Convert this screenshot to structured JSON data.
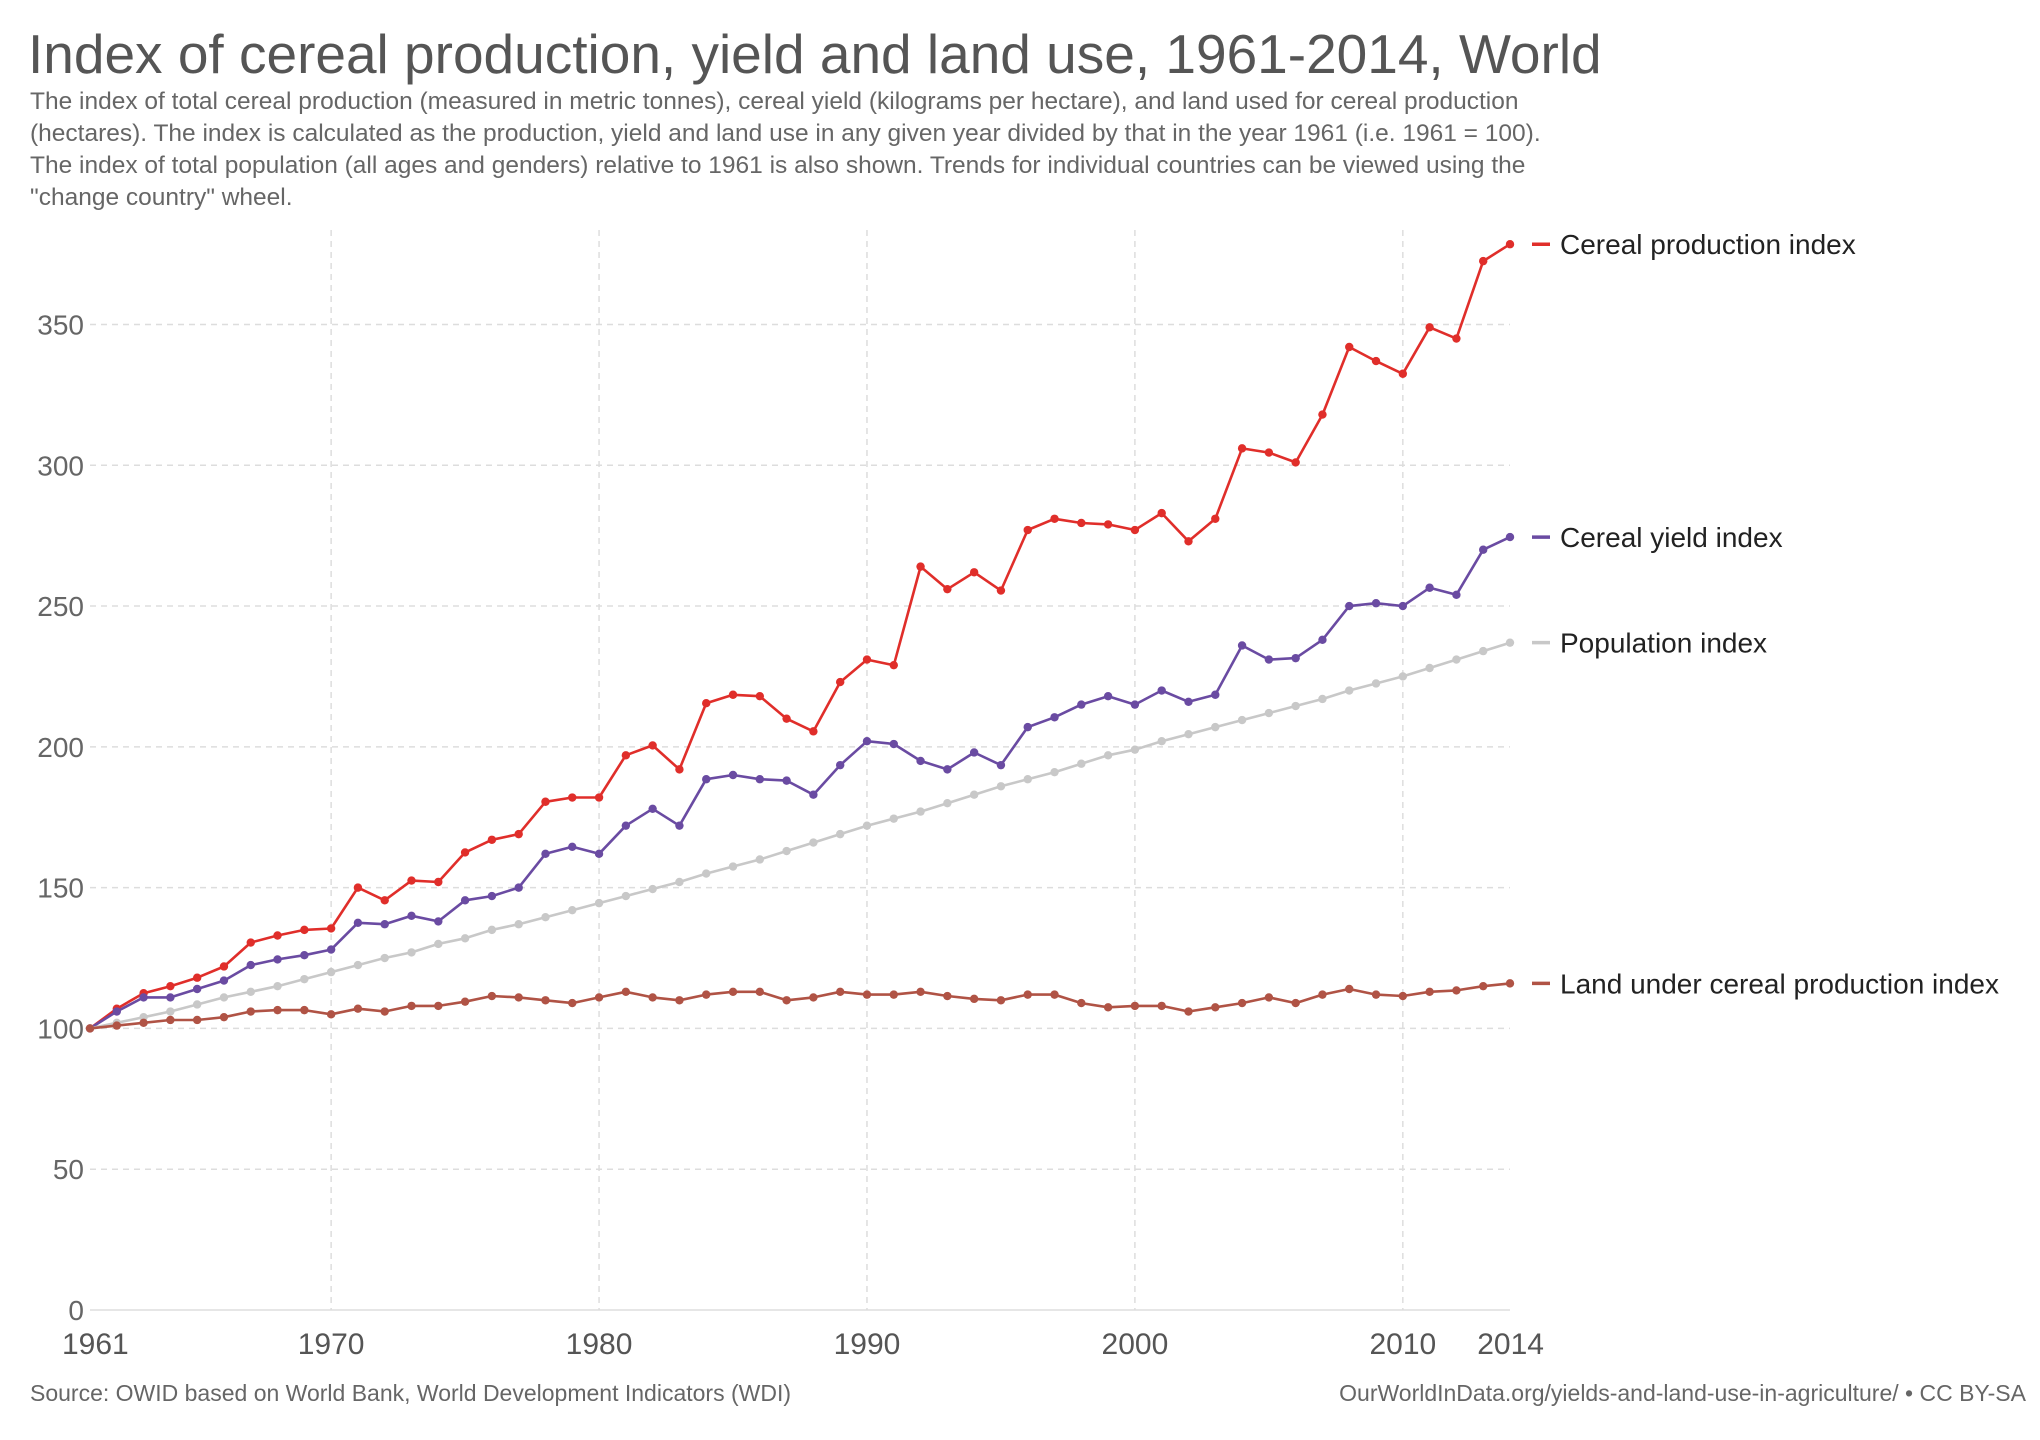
{
  "title": "Index of cereal production, yield and land use, 1961-2014, World",
  "subtitle_lines": [
    "The index of total cereal production (measured in metric tonnes), cereal yield (kilograms per hectare), and land used for cereal production",
    "(hectares). The index is calculated as the production, yield and land use in any given year divided by that in the year 1961 (i.e. 1961 = 100).",
    "The index of total population (all ages and genders) relative to 1961 is also shown. Trends for individual countries can be viewed using the",
    "\"change country\" wheel."
  ],
  "source": "Source: OWID based on World Bank, World Development Indicators (WDI)",
  "url": "OurWorldInData.org/yields-and-land-use-in-agriculture/ • CC BY-SA",
  "chart_data": {
    "type": "line",
    "title": "Index of cereal production, yield and land use, 1961-2014, World",
    "xlabel": "",
    "ylabel": "",
    "xlim": [
      1961,
      2014
    ],
    "ylim": [
      0,
      380
    ],
    "x_ticks": [
      1961,
      1970,
      1980,
      1990,
      2000,
      2010,
      2014
    ],
    "y_ticks": [
      0,
      50,
      100,
      150,
      200,
      250,
      300,
      350
    ],
    "grid": true,
    "legend": "right, labels at line ends",
    "x": [
      1961,
      1962,
      1963,
      1964,
      1965,
      1966,
      1967,
      1968,
      1969,
      1970,
      1971,
      1972,
      1973,
      1974,
      1975,
      1976,
      1977,
      1978,
      1979,
      1980,
      1981,
      1982,
      1983,
      1984,
      1985,
      1986,
      1987,
      1988,
      1989,
      1990,
      1991,
      1992,
      1993,
      1994,
      1995,
      1996,
      1997,
      1998,
      1999,
      2000,
      2001,
      2002,
      2003,
      2004,
      2005,
      2006,
      2007,
      2008,
      2009,
      2010,
      2011,
      2012,
      2013,
      2014
    ],
    "series": [
      {
        "name": "Cereal production index",
        "color": "#e02e2a",
        "values": [
          100,
          107,
          112.5,
          115,
          118,
          122,
          130.5,
          133,
          135,
          135.5,
          150,
          145.5,
          152.5,
          152,
          162.5,
          167,
          169,
          180.5,
          182,
          182,
          197,
          200.5,
          192,
          215.5,
          218.5,
          218,
          210,
          205.5,
          223,
          231,
          229,
          264,
          256,
          262,
          255.5,
          277,
          281,
          279.5,
          279,
          277,
          283,
          273,
          281,
          306,
          304.5,
          301,
          318,
          342,
          337,
          332.5,
          349,
          345,
          372.5,
          378.5
        ]
      },
      {
        "name": "Cereal yield index",
        "color": "#6a4ba2",
        "values": [
          100,
          106,
          111,
          111,
          114,
          117,
          122.5,
          124.5,
          126,
          128,
          137.5,
          137,
          140,
          138,
          145.5,
          147,
          150,
          162,
          164.5,
          162,
          172,
          178,
          172,
          188.5,
          190,
          188.5,
          188,
          183,
          193.5,
          202,
          201,
          195,
          192,
          198,
          193.5,
          207,
          210.5,
          215,
          218,
          215,
          220,
          216,
          218.5,
          236,
          231,
          231.5,
          238,
          250,
          251,
          250,
          256.5,
          254,
          270,
          274.5
        ]
      },
      {
        "name": "Population index",
        "color": "#c8c8c8",
        "values": [
          100,
          102,
          104,
          106,
          108.5,
          111,
          113,
          115,
          117.5,
          120,
          122.5,
          125,
          127,
          130,
          132,
          135,
          137,
          139.5,
          142,
          144.5,
          147,
          149.5,
          152,
          155,
          157.5,
          160,
          163,
          166,
          169,
          172,
          174.5,
          177,
          180,
          183,
          186,
          188.5,
          191,
          194,
          197,
          199,
          202,
          204.5,
          207,
          209.5,
          212,
          214.5,
          217,
          220,
          222.5,
          225,
          228,
          231,
          234,
          237
        ]
      },
      {
        "name": "Land under cereal production index",
        "color": "#b05345",
        "values": [
          100,
          101,
          102,
          103,
          103,
          104,
          106,
          106.5,
          106.5,
          105,
          107,
          106,
          108,
          108,
          109.5,
          111.5,
          111,
          110,
          109,
          111,
          113,
          111,
          110,
          112,
          113,
          113,
          110,
          111,
          113,
          112,
          112,
          113,
          111.5,
          110.5,
          110,
          112,
          112,
          109,
          107.5,
          108,
          108,
          106,
          107.5,
          109,
          111,
          109,
          112,
          114,
          112,
          111.5,
          113,
          113.5,
          115,
          116
        ]
      }
    ]
  }
}
